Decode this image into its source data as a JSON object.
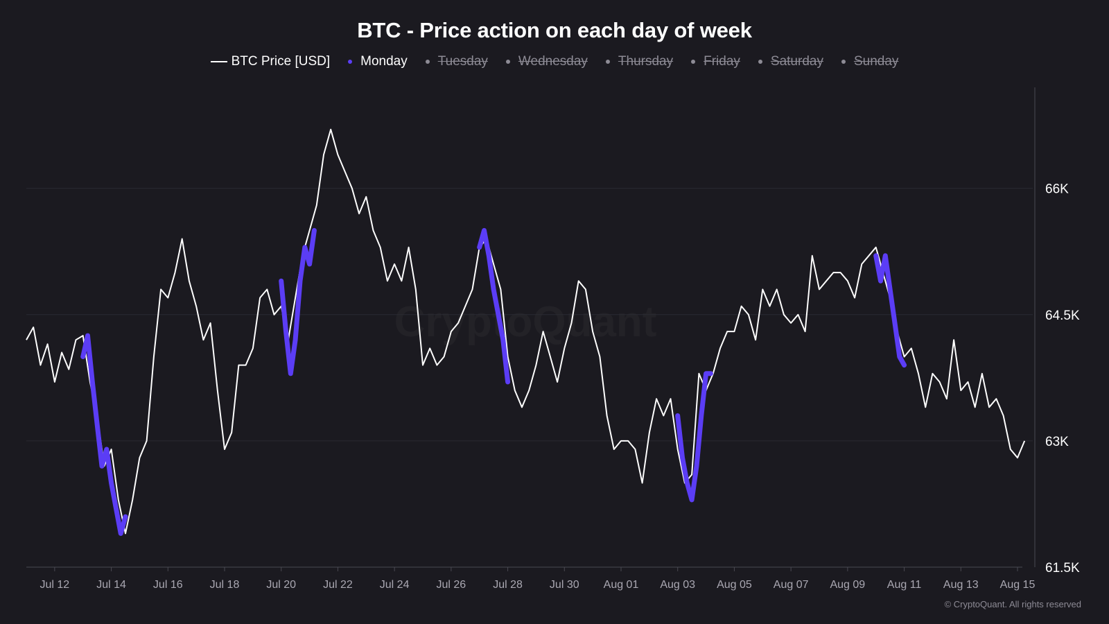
{
  "chart_data": {
    "type": "line",
    "title": "BTC - Price action on each day of week",
    "watermark": "CryptoQuant",
    "credit": "© CryptoQuant. All rights reserved",
    "legend": [
      {
        "label": "BTC Price [USD]",
        "symbol": "line",
        "color": "#ffffff",
        "active": true
      },
      {
        "label": "Monday",
        "symbol": "dot",
        "color": "#5b3df5",
        "active": true
      },
      {
        "label": "Tuesday",
        "symbol": "dot",
        "color": "#8d8b95",
        "active": false
      },
      {
        "label": "Wednesday",
        "symbol": "dot",
        "color": "#8d8b95",
        "active": false
      },
      {
        "label": "Thursday",
        "symbol": "dot",
        "color": "#8d8b95",
        "active": false
      },
      {
        "label": "Friday",
        "symbol": "dot",
        "color": "#8d8b95",
        "active": false
      },
      {
        "label": "Saturday",
        "symbol": "dot",
        "color": "#8d8b95",
        "active": false
      },
      {
        "label": "Sunday",
        "symbol": "dot",
        "color": "#8d8b95",
        "active": false
      }
    ],
    "x_ticks": [
      "Jul 12",
      "Jul 14",
      "Jul 16",
      "Jul 18",
      "Jul 20",
      "Jul 22",
      "Jul 24",
      "Jul 26",
      "Jul 28",
      "Jul 30",
      "Aug 01",
      "Aug 03",
      "Aug 05",
      "Aug 07",
      "Aug 09",
      "Aug 11",
      "Aug 13",
      "Aug 15"
    ],
    "y_ticks": [
      {
        "value": 61500,
        "label": "61.5K"
      },
      {
        "value": 63000,
        "label": "63K"
      },
      {
        "value": 64500,
        "label": "64.5K"
      },
      {
        "value": 66000,
        "label": "66K"
      }
    ],
    "ylim": [
      61500,
      67200
    ],
    "xlim": [
      "2024-07-11",
      "2024-08-15"
    ],
    "series": [
      {
        "name": "BTC Price [USD]",
        "color": "#ffffff",
        "points": [
          [
            "2024-07-11 00:00",
            64200
          ],
          [
            "2024-07-11 06:00",
            64350
          ],
          [
            "2024-07-11 12:00",
            63900
          ],
          [
            "2024-07-11 18:00",
            64150
          ],
          [
            "2024-07-12 00:00",
            63700
          ],
          [
            "2024-07-12 06:00",
            64050
          ],
          [
            "2024-07-12 12:00",
            63850
          ],
          [
            "2024-07-12 18:00",
            64200
          ],
          [
            "2024-07-13 00:00",
            64250
          ],
          [
            "2024-07-13 06:00",
            63700
          ],
          [
            "2024-07-13 12:00",
            63300
          ],
          [
            "2024-07-13 18:00",
            62700
          ],
          [
            "2024-07-14 00:00",
            62900
          ],
          [
            "2024-07-14 06:00",
            62300
          ],
          [
            "2024-07-14 12:00",
            61900
          ],
          [
            "2024-07-14 18:00",
            62300
          ],
          [
            "2024-07-15 00:00",
            62800
          ],
          [
            "2024-07-15 06:00",
            63000
          ],
          [
            "2024-07-15 12:00",
            64000
          ],
          [
            "2024-07-15 18:00",
            64800
          ],
          [
            "2024-07-16 00:00",
            64700
          ],
          [
            "2024-07-16 06:00",
            65000
          ],
          [
            "2024-07-16 12:00",
            65400
          ],
          [
            "2024-07-16 18:00",
            64900
          ],
          [
            "2024-07-17 00:00",
            64600
          ],
          [
            "2024-07-17 06:00",
            64200
          ],
          [
            "2024-07-17 12:00",
            64400
          ],
          [
            "2024-07-17 18:00",
            63600
          ],
          [
            "2024-07-18 00:00",
            62900
          ],
          [
            "2024-07-18 06:00",
            63100
          ],
          [
            "2024-07-18 12:00",
            63900
          ],
          [
            "2024-07-18 18:00",
            63900
          ],
          [
            "2024-07-19 00:00",
            64100
          ],
          [
            "2024-07-19 06:00",
            64700
          ],
          [
            "2024-07-19 12:00",
            64800
          ],
          [
            "2024-07-19 18:00",
            64500
          ],
          [
            "2024-07-20 00:00",
            64600
          ],
          [
            "2024-07-20 06:00",
            64200
          ],
          [
            "2024-07-20 12:00",
            64700
          ],
          [
            "2024-07-20 18:00",
            65200
          ],
          [
            "2024-07-21 00:00",
            65500
          ],
          [
            "2024-07-21 06:00",
            65800
          ],
          [
            "2024-07-21 12:00",
            66400
          ],
          [
            "2024-07-21 18:00",
            66700
          ],
          [
            "2024-07-22 00:00",
            66400
          ],
          [
            "2024-07-22 06:00",
            66200
          ],
          [
            "2024-07-22 12:00",
            66000
          ],
          [
            "2024-07-22 18:00",
            65700
          ],
          [
            "2024-07-23 00:00",
            65900
          ],
          [
            "2024-07-23 06:00",
            65500
          ],
          [
            "2024-07-23 12:00",
            65300
          ],
          [
            "2024-07-23 18:00",
            64900
          ],
          [
            "2024-07-24 00:00",
            65100
          ],
          [
            "2024-07-24 06:00",
            64900
          ],
          [
            "2024-07-24 12:00",
            65300
          ],
          [
            "2024-07-24 18:00",
            64800
          ],
          [
            "2024-07-25 00:00",
            63900
          ],
          [
            "2024-07-25 06:00",
            64100
          ],
          [
            "2024-07-25 12:00",
            63900
          ],
          [
            "2024-07-25 18:00",
            64000
          ],
          [
            "2024-07-26 00:00",
            64300
          ],
          [
            "2024-07-26 06:00",
            64400
          ],
          [
            "2024-07-26 12:00",
            64600
          ],
          [
            "2024-07-26 18:00",
            64800
          ],
          [
            "2024-07-27 00:00",
            65300
          ],
          [
            "2024-07-27 06:00",
            65400
          ],
          [
            "2024-07-27 12:00",
            65100
          ],
          [
            "2024-07-27 18:00",
            64800
          ],
          [
            "2024-07-28 00:00",
            64000
          ],
          [
            "2024-07-28 06:00",
            63600
          ],
          [
            "2024-07-28 12:00",
            63400
          ],
          [
            "2024-07-28 18:00",
            63600
          ],
          [
            "2024-07-29 00:00",
            63900
          ],
          [
            "2024-07-29 06:00",
            64300
          ],
          [
            "2024-07-29 12:00",
            64000
          ],
          [
            "2024-07-29 18:00",
            63700
          ],
          [
            "2024-07-30 00:00",
            64100
          ],
          [
            "2024-07-30 06:00",
            64400
          ],
          [
            "2024-07-30 12:00",
            64900
          ],
          [
            "2024-07-30 18:00",
            64800
          ],
          [
            "2024-07-31 00:00",
            64300
          ],
          [
            "2024-07-31 06:00",
            64000
          ],
          [
            "2024-07-31 12:00",
            63300
          ],
          [
            "2024-07-31 18:00",
            62900
          ],
          [
            "2024-08-01 00:00",
            63000
          ],
          [
            "2024-08-01 06:00",
            63000
          ],
          [
            "2024-08-01 12:00",
            62900
          ],
          [
            "2024-08-01 18:00",
            62500
          ],
          [
            "2024-08-02 00:00",
            63100
          ],
          [
            "2024-08-02 06:00",
            63500
          ],
          [
            "2024-08-02 12:00",
            63300
          ],
          [
            "2024-08-02 18:00",
            63500
          ],
          [
            "2024-08-03 00:00",
            62900
          ],
          [
            "2024-08-03 06:00",
            62500
          ],
          [
            "2024-08-03 12:00",
            62600
          ],
          [
            "2024-08-03 18:00",
            63800
          ],
          [
            "2024-08-04 00:00",
            63600
          ],
          [
            "2024-08-04 06:00",
            63800
          ],
          [
            "2024-08-04 12:00",
            64100
          ],
          [
            "2024-08-04 18:00",
            64300
          ],
          [
            "2024-08-05 00:00",
            64300
          ],
          [
            "2024-08-05 06:00",
            64600
          ],
          [
            "2024-08-05 12:00",
            64500
          ],
          [
            "2024-08-05 18:00",
            64200
          ],
          [
            "2024-08-06 00:00",
            64800
          ],
          [
            "2024-08-06 06:00",
            64600
          ],
          [
            "2024-08-06 12:00",
            64800
          ],
          [
            "2024-08-06 18:00",
            64500
          ],
          [
            "2024-08-07 00:00",
            64400
          ],
          [
            "2024-08-07 06:00",
            64500
          ],
          [
            "2024-08-07 12:00",
            64300
          ],
          [
            "2024-08-07 18:00",
            65200
          ],
          [
            "2024-08-08 00:00",
            64800
          ],
          [
            "2024-08-08 06:00",
            64900
          ],
          [
            "2024-08-08 12:00",
            65000
          ],
          [
            "2024-08-08 18:00",
            65000
          ],
          [
            "2024-08-09 00:00",
            64900
          ],
          [
            "2024-08-09 06:00",
            64700
          ],
          [
            "2024-08-09 12:00",
            65100
          ],
          [
            "2024-08-09 18:00",
            65200
          ],
          [
            "2024-08-10 00:00",
            65300
          ],
          [
            "2024-08-10 06:00",
            65000
          ],
          [
            "2024-08-10 12:00",
            64700
          ],
          [
            "2024-08-10 18:00",
            64300
          ],
          [
            "2024-08-11 00:00",
            64000
          ],
          [
            "2024-08-11 06:00",
            64100
          ],
          [
            "2024-08-11 12:00",
            63800
          ],
          [
            "2024-08-11 18:00",
            63400
          ],
          [
            "2024-08-12 00:00",
            63800
          ],
          [
            "2024-08-12 06:00",
            63700
          ],
          [
            "2024-08-12 12:00",
            63500
          ],
          [
            "2024-08-12 18:00",
            64200
          ],
          [
            "2024-08-13 00:00",
            63600
          ],
          [
            "2024-08-13 06:00",
            63700
          ],
          [
            "2024-08-13 12:00",
            63400
          ],
          [
            "2024-08-13 18:00",
            63800
          ],
          [
            "2024-08-14 00:00",
            63400
          ],
          [
            "2024-08-14 06:00",
            63500
          ],
          [
            "2024-08-14 12:00",
            63300
          ],
          [
            "2024-08-14 18:00",
            62900
          ],
          [
            "2024-08-15 00:00",
            62800
          ],
          [
            "2024-08-15 06:00",
            63000
          ]
        ]
      },
      {
        "name": "Monday",
        "color": "#5b3df5",
        "segments": [
          [
            [
              "2024-07-13 00:00",
              64000
            ],
            [
              "2024-07-13 04:00",
              64250
            ],
            [
              "2024-07-13 08:00",
              63700
            ],
            [
              "2024-07-13 12:00",
              63200
            ],
            [
              "2024-07-13 16:00",
              62700
            ],
            [
              "2024-07-13 20:00",
              62900
            ],
            [
              "2024-07-14 00:00",
              62500
            ],
            [
              "2024-07-14 04:00",
              62200
            ],
            [
              "2024-07-14 08:00",
              61900
            ],
            [
              "2024-07-14 12:00",
              62100
            ]
          ],
          [
            [
              "2024-07-20 00:00",
              64900
            ],
            [
              "2024-07-20 04:00",
              64300
            ],
            [
              "2024-07-20 08:00",
              63800
            ],
            [
              "2024-07-20 12:00",
              64200
            ],
            [
              "2024-07-20 16:00",
              64900
            ],
            [
              "2024-07-20 20:00",
              65300
            ],
            [
              "2024-07-21 00:00",
              65100
            ],
            [
              "2024-07-21 04:00",
              65500
            ]
          ],
          [
            [
              "2024-07-27 00:00",
              65300
            ],
            [
              "2024-07-27 04:00",
              65500
            ],
            [
              "2024-07-27 08:00",
              65200
            ],
            [
              "2024-07-27 12:00",
              64800
            ],
            [
              "2024-07-27 16:00",
              64500
            ],
            [
              "2024-07-27 20:00",
              64200
            ],
            [
              "2024-07-28 00:00",
              63700
            ]
          ],
          [
            [
              "2024-08-03 00:00",
              63300
            ],
            [
              "2024-08-03 04:00",
              62800
            ],
            [
              "2024-08-03 08:00",
              62500
            ],
            [
              "2024-08-03 12:00",
              62300
            ],
            [
              "2024-08-03 16:00",
              62700
            ],
            [
              "2024-08-03 20:00",
              63300
            ],
            [
              "2024-08-04 00:00",
              63800
            ],
            [
              "2024-08-04 04:00",
              63800
            ]
          ],
          [
            [
              "2024-08-10 00:00",
              65200
            ],
            [
              "2024-08-10 04:00",
              64900
            ],
            [
              "2024-08-10 08:00",
              65200
            ],
            [
              "2024-08-10 12:00",
              64800
            ],
            [
              "2024-08-10 16:00",
              64400
            ],
            [
              "2024-08-10 20:00",
              64000
            ],
            [
              "2024-08-11 00:00",
              63900
            ]
          ]
        ]
      }
    ]
  }
}
